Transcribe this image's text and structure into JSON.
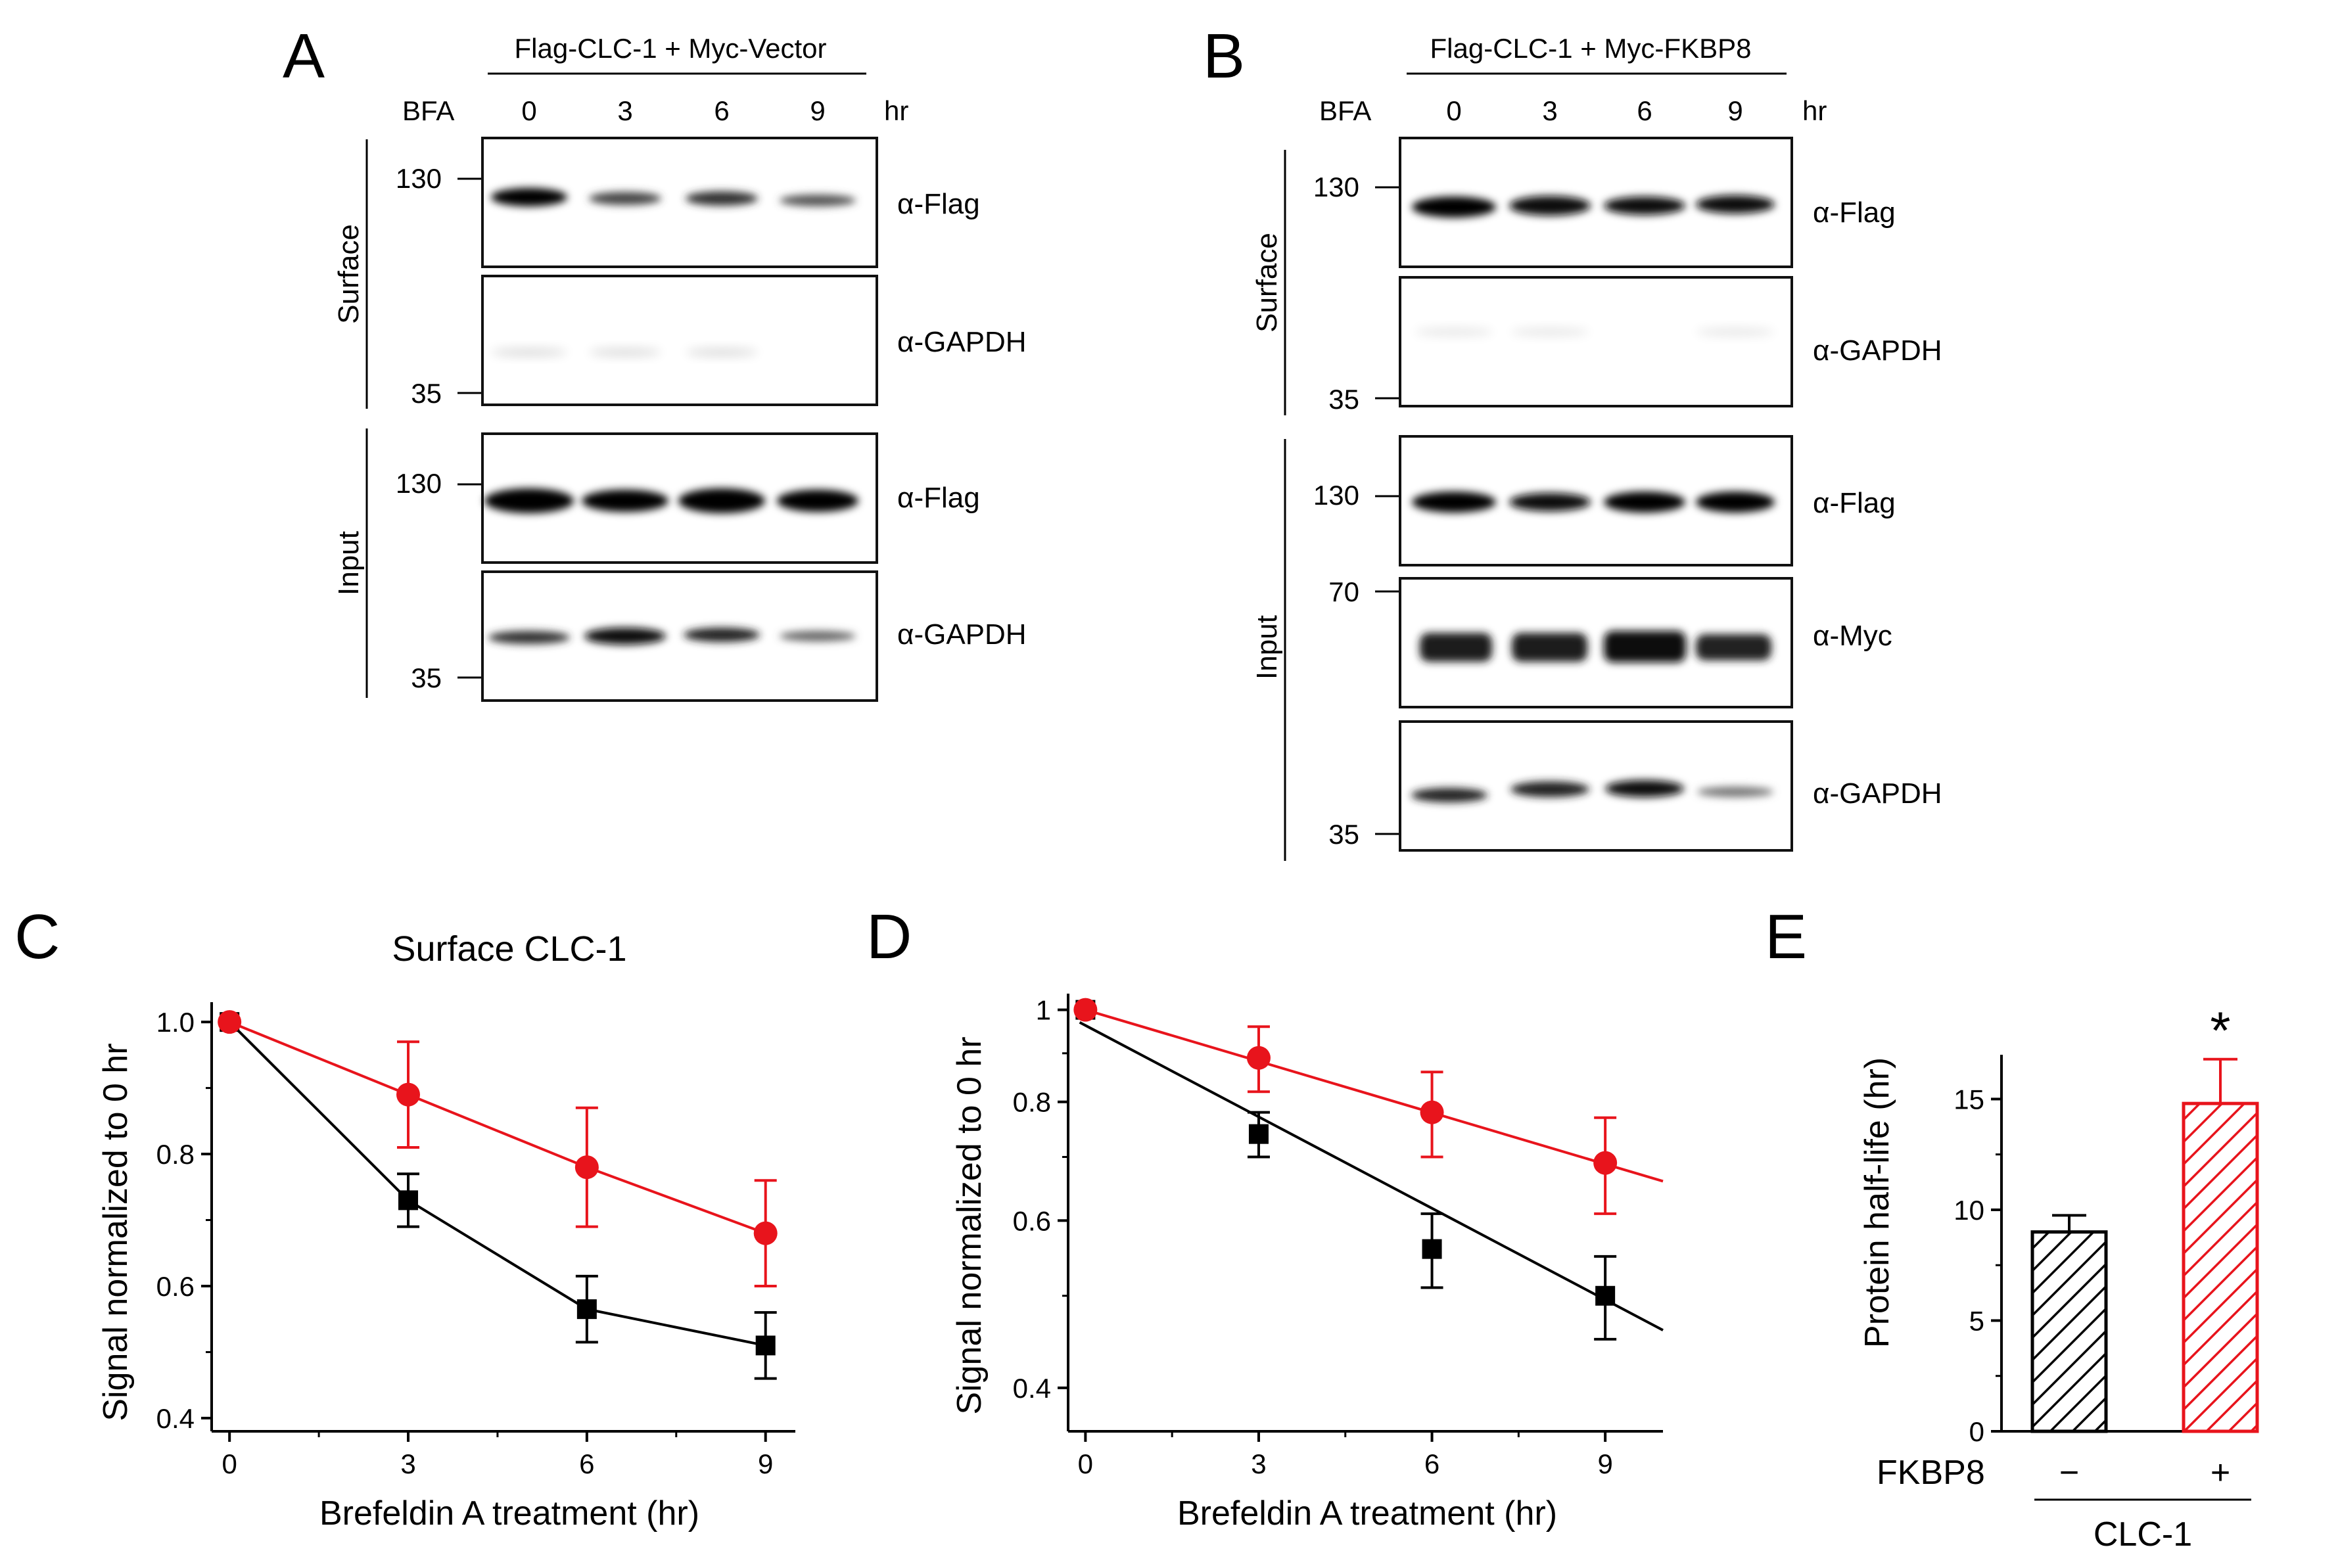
{
  "panels": {
    "A": {
      "letter": "A",
      "header": "Flag-CLC-1 + Myc-Vector",
      "treatment": "BFA",
      "times": [
        "0",
        "3",
        "6",
        "9"
      ],
      "unit": "hr",
      "sections": [
        "Surface",
        "Input"
      ],
      "mw": {
        "top": "130",
        "bottom": "35"
      },
      "blots": [
        "α-Flag",
        "α-GAPDH",
        "α-Flag",
        "α-GAPDH"
      ]
    },
    "B": {
      "letter": "B",
      "header": "Flag-CLC-1 + Myc-FKBP8",
      "treatment": "BFA",
      "times": [
        "0",
        "3",
        "6",
        "9"
      ],
      "unit": "hr",
      "sections": [
        "Surface",
        "Input"
      ],
      "mw": {
        "top": "130",
        "mid": "70",
        "bottom": "35"
      },
      "blots": [
        "α-Flag",
        "α-GAPDH",
        "α-Flag",
        "α-Myc",
        "α-GAPDH"
      ]
    },
    "C": {
      "letter": "C"
    },
    "D": {
      "letter": "D"
    },
    "E": {
      "letter": "E"
    }
  },
  "chart_data": [
    {
      "id": "C",
      "type": "line",
      "title": "Surface CLC-1",
      "xlabel": "Brefeldin A treatment (hr)",
      "ylabel": "Signal normalized to 0 hr",
      "xlim": [
        -0.3,
        9.5
      ],
      "ylim": [
        0.38,
        1.03
      ],
      "xticks": [
        0,
        3,
        6,
        9
      ],
      "yticks": [
        0.4,
        0.6,
        0.8,
        1.0
      ],
      "ytick_labels": [
        "0.4",
        "0.6",
        "0.8",
        "1.0"
      ],
      "series": [
        {
          "name": "Myc-Vector",
          "color": "#000000",
          "marker": "square",
          "x": [
            0,
            3,
            6,
            9
          ],
          "values": [
            1.0,
            0.73,
            0.565,
            0.51
          ],
          "err": [
            0,
            0.04,
            0.05,
            0.05
          ]
        },
        {
          "name": "Myc-FKBP8",
          "color": "#e8141c",
          "marker": "circle",
          "x": [
            0,
            3,
            6,
            9
          ],
          "values": [
            1.0,
            0.89,
            0.78,
            0.68
          ],
          "err": [
            0,
            0.08,
            0.09,
            0.08
          ]
        }
      ]
    },
    {
      "id": "D",
      "type": "line",
      "scale": "log",
      "xlabel": "Brefeldin A treatment (hr)",
      "ylabel": "Signal normalized to 0 hr",
      "xlim": [
        -0.3,
        10
      ],
      "ylim": [
        0.36,
        1.04
      ],
      "xticks": [
        0,
        3,
        6,
        9
      ],
      "yticks": [
        0.4,
        0.6,
        0.8,
        1.0
      ],
      "ytick_labels": [
        "0.4",
        "0.6",
        "0.8",
        "1"
      ],
      "series": [
        {
          "name": "Myc-Vector",
          "color": "#000000",
          "marker": "square",
          "x": [
            0,
            3,
            6,
            9
          ],
          "values": [
            1.0,
            0.74,
            0.56,
            0.5
          ],
          "err": [
            0,
            0.04,
            0.05,
            0.05
          ],
          "fit": [
            [
              -0.1,
              0.97
            ],
            [
              10,
              0.46
            ]
          ]
        },
        {
          "name": "Myc-FKBP8",
          "color": "#e8141c",
          "marker": "circle",
          "x": [
            0,
            3,
            6,
            9
          ],
          "values": [
            1.0,
            0.89,
            0.78,
            0.69
          ],
          "err": [
            0,
            0.07,
            0.08,
            0.08
          ],
          "fit": [
            [
              0,
              1.0
            ],
            [
              10,
              0.66
            ]
          ]
        }
      ]
    },
    {
      "id": "E",
      "type": "bar",
      "ylabel": "Protein half-life (hr)",
      "ylim": [
        0,
        17
      ],
      "yticks": [
        0,
        5,
        10,
        15
      ],
      "ytick_labels": [
        "0",
        "5",
        "10",
        "15"
      ],
      "categories": [
        "−",
        "+"
      ],
      "row_label": "FKBP8",
      "group_label": "CLC-1",
      "values": [
        9.0,
        14.8
      ],
      "err": [
        0.75,
        2.0
      ],
      "colors": [
        "#000000",
        "#e8141c"
      ],
      "annotation": "*"
    }
  ]
}
